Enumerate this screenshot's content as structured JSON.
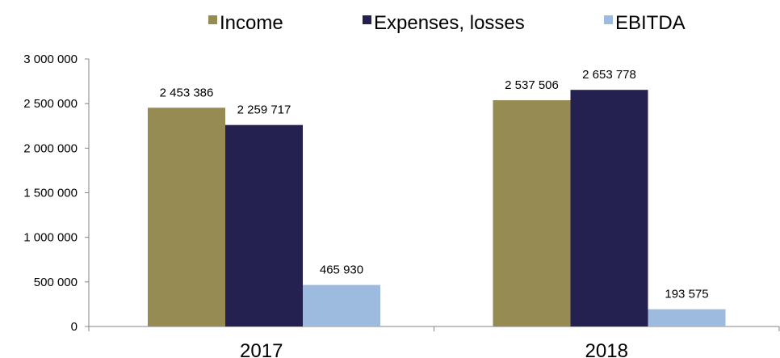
{
  "chart_data": {
    "type": "bar",
    "categories": [
      "2017",
      "2018"
    ],
    "series": [
      {
        "name": "Income",
        "color": "#958B53",
        "values": [
          2453386,
          2537506
        ],
        "labels": [
          "2 453 386",
          "2 537 506"
        ]
      },
      {
        "name": "Expenses, losses",
        "color": "#24204F",
        "values": [
          2259717,
          2653778
        ],
        "labels": [
          "2 259 717",
          "2 653 778"
        ]
      },
      {
        "name": "EBITDA",
        "color": "#9CBBDE",
        "values": [
          465930,
          193575
        ],
        "labels": [
          "465 930",
          "193 575"
        ]
      }
    ],
    "ylim": [
      0,
      3000000
    ],
    "yticks": [
      0,
      500000,
      1000000,
      1500000,
      2000000,
      2500000,
      3000000
    ],
    "ytick_labels": [
      "0",
      "500 000",
      "1 000 000",
      "1 500 000",
      "2 000 000",
      "2 500 000",
      "3 000 000"
    ],
    "legend_position": "top",
    "grid": false,
    "title": "",
    "xlabel": "",
    "ylabel": ""
  }
}
